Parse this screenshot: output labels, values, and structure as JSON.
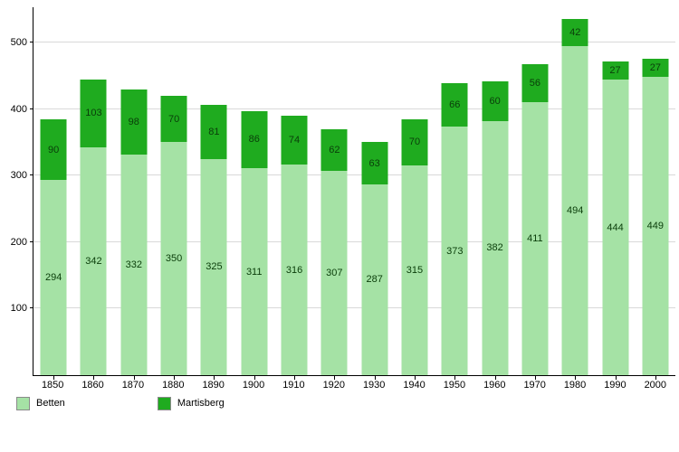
{
  "chart_data": {
    "type": "bar",
    "stacked": true,
    "title": "",
    "xlabel": "",
    "ylabel": "",
    "categories": [
      "1850",
      "1860",
      "1870",
      "1880",
      "1890",
      "1900",
      "1910",
      "1920",
      "1930",
      "1940",
      "1950",
      "1960",
      "1970",
      "1980",
      "1990",
      "2000"
    ],
    "series": [
      {
        "name": "Betten",
        "color": "#a5e2a5",
        "values": [
          294,
          342,
          332,
          350,
          325,
          311,
          316,
          307,
          287,
          315,
          373,
          382,
          411,
          494,
          444,
          449
        ]
      },
      {
        "name": "Martisberg",
        "color": "#1fab1f",
        "values": [
          90,
          103,
          98,
          70,
          81,
          86,
          74,
          62,
          63,
          70,
          66,
          60,
          56,
          42,
          27,
          27
        ]
      }
    ],
    "yticks": [
      100,
      200,
      300,
      400,
      500
    ],
    "ylim": [
      0,
      553
    ],
    "grid": true,
    "legend_position": "bottom-left",
    "colors": {
      "axis": "#000000",
      "gridline": "#d9d9d9",
      "bar_label": "#0a3d0a",
      "background": "#ffffff"
    }
  }
}
